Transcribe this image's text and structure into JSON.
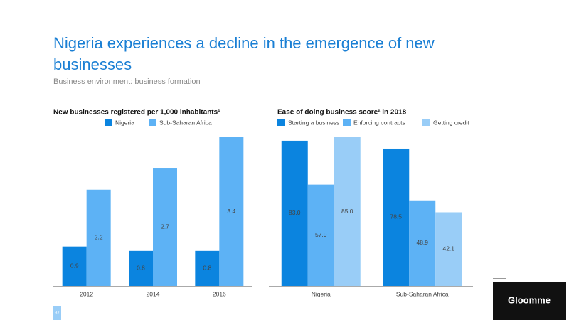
{
  "header": {
    "title_lines": [
      "Nigeria experiences a decline in the emergence of new",
      "businesses"
    ],
    "subtitle": "Business environment: business formation"
  },
  "chart_data": [
    {
      "type": "bar",
      "title": "New businesses registered per 1,000 inhabitants¹",
      "categories": [
        "2012",
        "2014",
        "2016"
      ],
      "series": [
        {
          "name": "Nigeria",
          "color": "#0b84df",
          "values": [
            0.9,
            0.8,
            0.8
          ]
        },
        {
          "name": "Sub-Saharan Africa",
          "color": "#5db2f5",
          "values": [
            2.2,
            2.7,
            3.4
          ]
        }
      ]
    },
    {
      "type": "bar",
      "title": "Ease of doing business score² in 2018",
      "categories": [
        "Nigeria",
        "Sub-Saharan Africa"
      ],
      "series": [
        {
          "name": "Starting a business",
          "color": "#0b84df",
          "values": [
            83.0,
            78.5
          ],
          "value_labels": [
            "83.0",
            "78.5"
          ]
        },
        {
          "name": "Enforcing contracts",
          "color": "#5db2f5",
          "values": [
            57.9,
            48.9
          ],
          "value_labels": [
            "57.9",
            "48.9"
          ]
        },
        {
          "name": "Getting credit",
          "color": "#99cdf7",
          "values": [
            85.0,
            42.1
          ],
          "value_labels": [
            "85.0",
            "42.1"
          ]
        }
      ]
    }
  ],
  "footer": {
    "page_number": "37",
    "logo": "Gloomme"
  }
}
